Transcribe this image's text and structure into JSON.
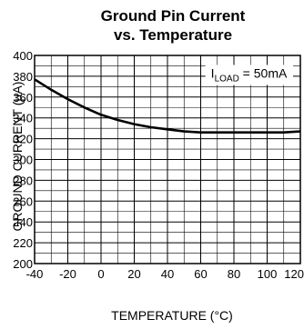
{
  "chart_data": {
    "type": "line",
    "title_line1": "Ground Pin Current",
    "title_line2": "vs. Temperature",
    "xlabel": "TEMPERATURE (°C)",
    "ylabel": "GROUND CURRENT (µA)",
    "xlim": [
      -40,
      120
    ],
    "ylim": [
      200,
      400
    ],
    "x_ticks": [
      -40,
      -20,
      0,
      20,
      40,
      60,
      80,
      100,
      120
    ],
    "y_ticks": [
      200,
      220,
      240,
      260,
      280,
      300,
      320,
      340,
      360,
      380,
      400
    ],
    "grid": true,
    "annotation": {
      "main": "I",
      "subscript": "LOAD",
      "rest": " = 50mA"
    },
    "series": [
      {
        "x": [
          -40,
          -30,
          -20,
          -10,
          0,
          10,
          20,
          30,
          40,
          50,
          60,
          70,
          80,
          90,
          100,
          110,
          120
        ],
        "y": [
          377,
          367,
          358,
          350,
          343,
          338,
          334,
          331,
          329,
          327,
          326,
          326,
          326,
          326,
          326,
          326,
          327
        ]
      }
    ]
  }
}
